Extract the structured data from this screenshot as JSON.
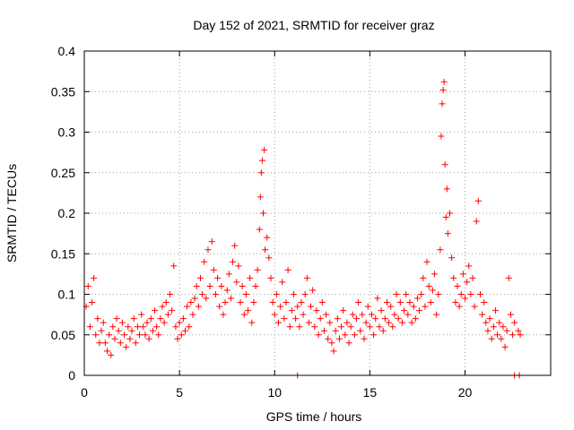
{
  "chart_data": {
    "type": "scatter",
    "title": "Day 152 of 2021, SRMTID for receiver graz",
    "xlabel": "GPS time / hours",
    "ylabel": "SRMTID / TECUs",
    "xlim": [
      0,
      24.5
    ],
    "ylim": [
      0,
      0.4
    ],
    "xticks": [
      0,
      5,
      10,
      15,
      20
    ],
    "xtick_labels": [
      "0",
      "5",
      "10",
      "15",
      "20"
    ],
    "yticks": [
      0,
      0.05,
      0.1,
      0.15,
      0.2,
      0.25,
      0.3,
      0.35,
      0.4
    ],
    "ytick_labels": [
      "0",
      "0.05",
      "0.1",
      "0.15",
      "0.2",
      "0.25",
      "0.3",
      "0.35",
      "0.4"
    ],
    "grid": true,
    "marker": "+",
    "marker_color": "#ff0000",
    "series": [
      {
        "name": "SRMTID",
        "points": [
          [
            0.1,
            0.085
          ],
          [
            0.2,
            0.11
          ],
          [
            0.3,
            0.06
          ],
          [
            0.4,
            0.09
          ],
          [
            0.5,
            0.12
          ],
          [
            0.6,
            0.05
          ],
          [
            0.7,
            0.07
          ],
          [
            0.8,
            0.04
          ],
          [
            0.9,
            0.055
          ],
          [
            1.0,
            0.065
          ],
          [
            1.1,
            0.04
          ],
          [
            1.2,
            0.03
          ],
          [
            1.3,
            0.05
          ],
          [
            1.4,
            0.025
          ],
          [
            1.5,
            0.06
          ],
          [
            1.6,
            0.045
          ],
          [
            1.7,
            0.07
          ],
          [
            1.8,
            0.055
          ],
          [
            1.9,
            0.04
          ],
          [
            2.0,
            0.065
          ],
          [
            2.1,
            0.05
          ],
          [
            2.2,
            0.035
          ],
          [
            2.3,
            0.06
          ],
          [
            2.4,
            0.045
          ],
          [
            2.5,
            0.055
          ],
          [
            2.6,
            0.07
          ],
          [
            2.7,
            0.04
          ],
          [
            2.8,
            0.06
          ],
          [
            2.9,
            0.05
          ],
          [
            3.0,
            0.075
          ],
          [
            3.1,
            0.06
          ],
          [
            3.2,
            0.05
          ],
          [
            3.3,
            0.065
          ],
          [
            3.4,
            0.045
          ],
          [
            3.5,
            0.07
          ],
          [
            3.6,
            0.055
          ],
          [
            3.7,
            0.08
          ],
          [
            3.8,
            0.06
          ],
          [
            3.9,
            0.05
          ],
          [
            4.0,
            0.07
          ],
          [
            4.1,
            0.085
          ],
          [
            4.2,
            0.065
          ],
          [
            4.3,
            0.09
          ],
          [
            4.4,
            0.075
          ],
          [
            4.5,
            0.1
          ],
          [
            4.6,
            0.08
          ],
          [
            4.7,
            0.135
          ],
          [
            4.8,
            0.06
          ],
          [
            4.9,
            0.045
          ],
          [
            5.0,
            0.065
          ],
          [
            5.1,
            0.05
          ],
          [
            5.2,
            0.07
          ],
          [
            5.3,
            0.055
          ],
          [
            5.4,
            0.085
          ],
          [
            5.5,
            0.06
          ],
          [
            5.6,
            0.09
          ],
          [
            5.7,
            0.075
          ],
          [
            5.8,
            0.095
          ],
          [
            5.9,
            0.11
          ],
          [
            6.0,
            0.085
          ],
          [
            6.1,
            0.12
          ],
          [
            6.2,
            0.1
          ],
          [
            6.3,
            0.14
          ],
          [
            6.4,
            0.095
          ],
          [
            6.5,
            0.155
          ],
          [
            6.6,
            0.11
          ],
          [
            6.7,
            0.165
          ],
          [
            6.8,
            0.13
          ],
          [
            6.9,
            0.1
          ],
          [
            7.0,
            0.12
          ],
          [
            7.1,
            0.085
          ],
          [
            7.2,
            0.11
          ],
          [
            7.3,
            0.075
          ],
          [
            7.4,
            0.09
          ],
          [
            7.5,
            0.105
          ],
          [
            7.6,
            0.125
          ],
          [
            7.7,
            0.095
          ],
          [
            7.8,
            0.14
          ],
          [
            7.9,
            0.16
          ],
          [
            8.0,
            0.115
          ],
          [
            8.1,
            0.135
          ],
          [
            8.2,
            0.09
          ],
          [
            8.3,
            0.11
          ],
          [
            8.4,
            0.075
          ],
          [
            8.5,
            0.1
          ],
          [
            8.6,
            0.08
          ],
          [
            8.7,
            0.12
          ],
          [
            8.8,
            0.065
          ],
          [
            8.9,
            0.09
          ],
          [
            9.0,
            0.11
          ],
          [
            9.1,
            0.13
          ],
          [
            9.2,
            0.18
          ],
          [
            9.25,
            0.22
          ],
          [
            9.3,
            0.25
          ],
          [
            9.35,
            0.265
          ],
          [
            9.4,
            0.2
          ],
          [
            9.45,
            0.278
          ],
          [
            9.5,
            0.155
          ],
          [
            9.6,
            0.17
          ],
          [
            9.7,
            0.145
          ],
          [
            9.8,
            0.12
          ],
          [
            9.9,
            0.09
          ],
          [
            10.0,
            0.075
          ],
          [
            10.1,
            0.1
          ],
          [
            10.2,
            0.065
          ],
          [
            10.3,
            0.085
          ],
          [
            10.4,
            0.115
          ],
          [
            10.5,
            0.07
          ],
          [
            10.6,
            0.09
          ],
          [
            10.7,
            0.13
          ],
          [
            10.8,
            0.06
          ],
          [
            10.9,
            0.08
          ],
          [
            11.0,
            0.1
          ],
          [
            11.1,
            0.07
          ],
          [
            11.2,
            0.085
          ],
          [
            11.3,
            0.06
          ],
          [
            11.4,
            0.09
          ],
          [
            11.5,
            0.075
          ],
          [
            11.6,
            0.1
          ],
          [
            11.7,
            0.12
          ],
          [
            11.8,
            0.065
          ],
          [
            11.9,
            0.085
          ],
          [
            12.0,
            0.105
          ],
          [
            12.1,
            0.06
          ],
          [
            12.2,
            0.08
          ],
          [
            12.3,
            0.05
          ],
          [
            12.4,
            0.07
          ],
          [
            12.5,
            0.09
          ],
          [
            12.6,
            0.055
          ],
          [
            12.7,
            0.075
          ],
          [
            12.8,
            0.045
          ],
          [
            12.9,
            0.065
          ],
          [
            13.0,
            0.04
          ],
          [
            13.1,
            0.03
          ],
          [
            13.2,
            0.055
          ],
          [
            13.3,
            0.07
          ],
          [
            13.4,
            0.045
          ],
          [
            13.5,
            0.06
          ],
          [
            13.6,
            0.08
          ],
          [
            13.7,
            0.05
          ],
          [
            13.8,
            0.065
          ],
          [
            13.9,
            0.04
          ],
          [
            14.0,
            0.06
          ],
          [
            14.1,
            0.075
          ],
          [
            14.2,
            0.05
          ],
          [
            14.3,
            0.07
          ],
          [
            14.4,
            0.09
          ],
          [
            14.5,
            0.055
          ],
          [
            14.6,
            0.075
          ],
          [
            14.7,
            0.045
          ],
          [
            14.8,
            0.065
          ],
          [
            14.9,
            0.085
          ],
          [
            15.0,
            0.06
          ],
          [
            15.1,
            0.075
          ],
          [
            15.2,
            0.05
          ],
          [
            15.3,
            0.07
          ],
          [
            15.4,
            0.095
          ],
          [
            15.5,
            0.06
          ],
          [
            15.6,
            0.08
          ],
          [
            15.7,
            0.055
          ],
          [
            15.8,
            0.07
          ],
          [
            15.9,
            0.09
          ],
          [
            16.0,
            0.065
          ],
          [
            16.1,
            0.085
          ],
          [
            16.2,
            0.06
          ],
          [
            16.3,
            0.075
          ],
          [
            16.4,
            0.1
          ],
          [
            16.5,
            0.07
          ],
          [
            16.6,
            0.09
          ],
          [
            16.7,
            0.065
          ],
          [
            16.8,
            0.08
          ],
          [
            16.9,
            0.1
          ],
          [
            17.0,
            0.075
          ],
          [
            17.1,
            0.09
          ],
          [
            17.2,
            0.065
          ],
          [
            17.3,
            0.085
          ],
          [
            17.4,
            0.07
          ],
          [
            17.5,
            0.095
          ],
          [
            17.6,
            0.08
          ],
          [
            17.7,
            0.1
          ],
          [
            17.8,
            0.12
          ],
          [
            17.9,
            0.085
          ],
          [
            18.0,
            0.14
          ],
          [
            18.1,
            0.11
          ],
          [
            18.2,
            0.09
          ],
          [
            18.3,
            0.105
          ],
          [
            18.4,
            0.125
          ],
          [
            18.5,
            0.075
          ],
          [
            18.6,
            0.1
          ],
          [
            18.7,
            0.155
          ],
          [
            18.75,
            0.295
          ],
          [
            18.8,
            0.335
          ],
          [
            18.85,
            0.352
          ],
          [
            18.9,
            0.362
          ],
          [
            18.95,
            0.26
          ],
          [
            19.0,
            0.195
          ],
          [
            19.05,
            0.23
          ],
          [
            19.1,
            0.175
          ],
          [
            19.2,
            0.2
          ],
          [
            19.3,
            0.145
          ],
          [
            19.4,
            0.12
          ],
          [
            19.5,
            0.09
          ],
          [
            19.6,
            0.11
          ],
          [
            19.7,
            0.085
          ],
          [
            19.8,
            0.1
          ],
          [
            19.9,
            0.125
          ],
          [
            20.0,
            0.095
          ],
          [
            20.1,
            0.115
          ],
          [
            20.2,
            0.135
          ],
          [
            20.3,
            0.1
          ],
          [
            20.4,
            0.12
          ],
          [
            20.5,
            0.085
          ],
          [
            20.6,
            0.19
          ],
          [
            20.7,
            0.215
          ],
          [
            20.8,
            0.1
          ],
          [
            20.9,
            0.075
          ],
          [
            21.0,
            0.09
          ],
          [
            21.1,
            0.065
          ],
          [
            21.2,
            0.055
          ],
          [
            21.3,
            0.07
          ],
          [
            21.4,
            0.045
          ],
          [
            21.5,
            0.06
          ],
          [
            21.6,
            0.08
          ],
          [
            21.7,
            0.05
          ],
          [
            21.8,
            0.065
          ],
          [
            21.9,
            0.045
          ],
          [
            22.0,
            0.06
          ],
          [
            22.1,
            0.035
          ],
          [
            22.2,
            0.055
          ],
          [
            22.3,
            0.12
          ],
          [
            22.4,
            0.075
          ],
          [
            22.5,
            0.05
          ],
          [
            22.6,
            0.065
          ],
          [
            22.8,
            0.055
          ],
          [
            22.9,
            0.05
          ],
          [
            11.2,
            0.0
          ],
          [
            22.6,
            0.0
          ],
          [
            22.85,
            0.0
          ]
        ]
      }
    ]
  }
}
